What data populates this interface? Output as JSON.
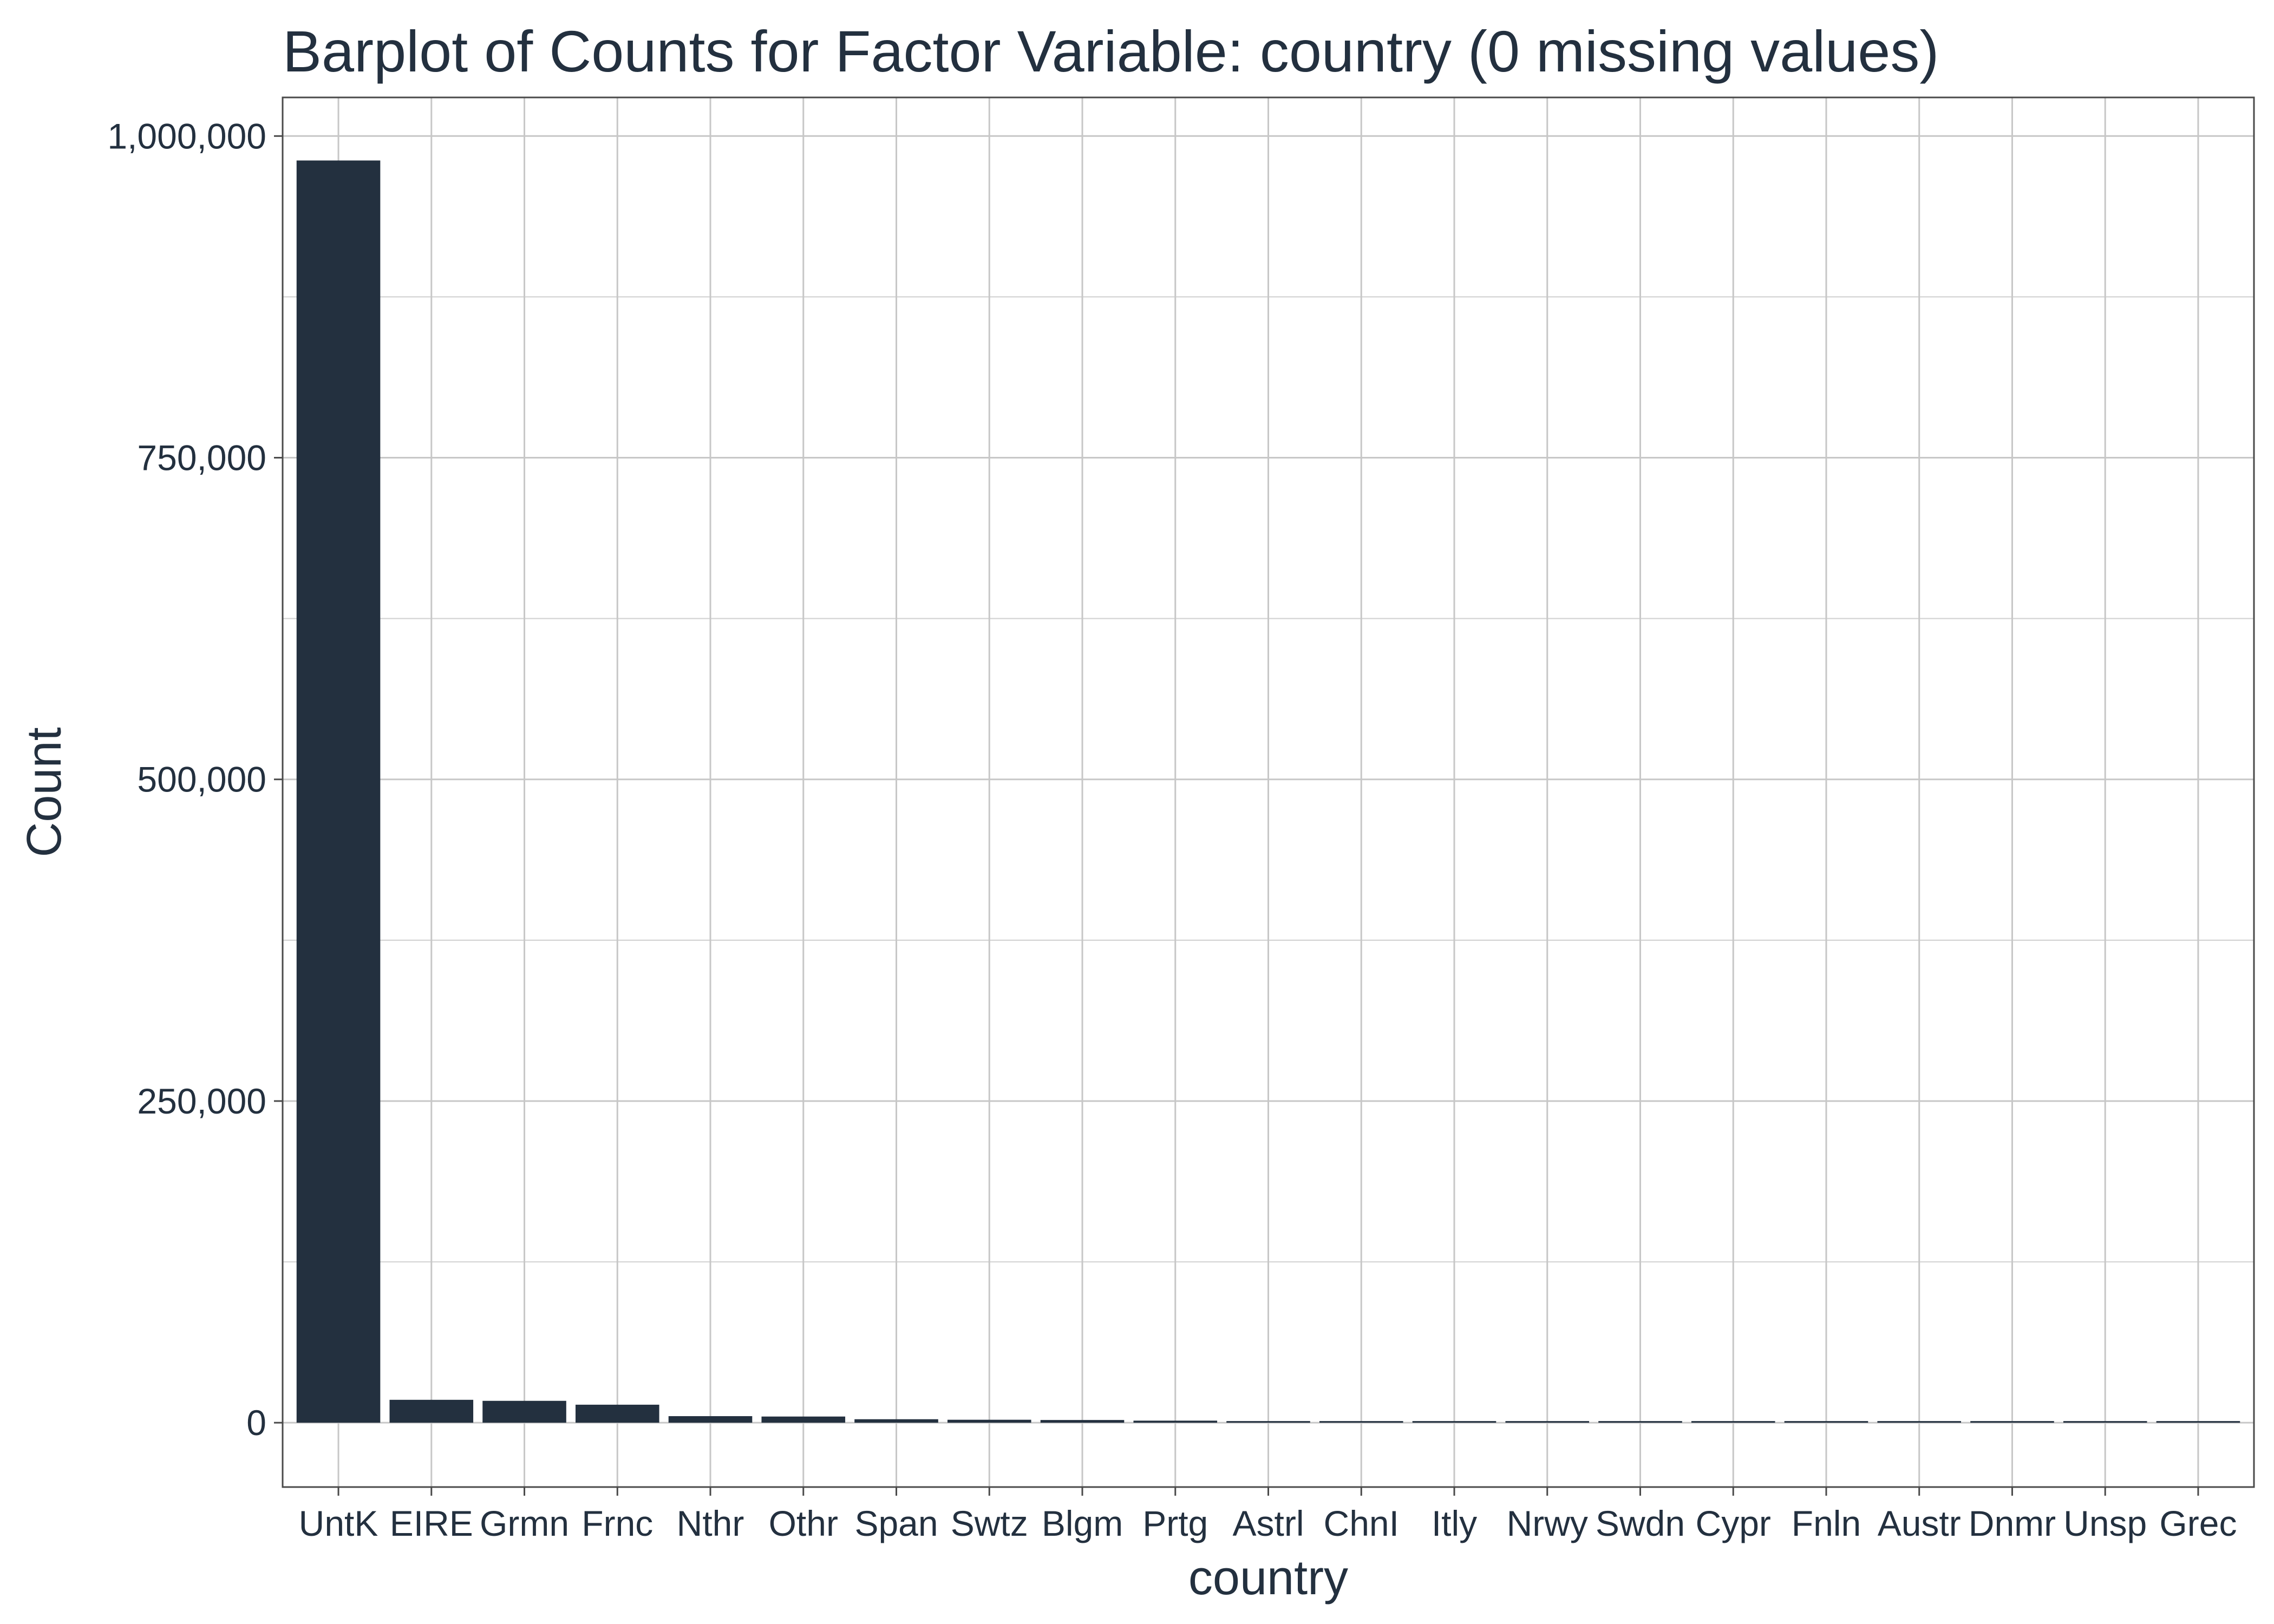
{
  "chart_data": {
    "type": "bar",
    "title": "Barplot of Counts for Factor Variable: country (0 missing values)",
    "xlabel": "country",
    "ylabel": "Count",
    "categories": [
      "UntK",
      "EIRE",
      "Grmn",
      "Frnc",
      "Nthr",
      "Othr",
      "Span",
      "Swtz",
      "Blgm",
      "Prtg",
      "Astrl",
      "ChnI",
      "Itly",
      "Nrwy",
      "Swdn",
      "Cypr",
      "Fnln",
      "Austr",
      "Dnmr",
      "Unsp",
      "Grec"
    ],
    "values": [
      981000,
      17800,
      17000,
      14000,
      5100,
      4800,
      2700,
      2300,
      2100,
      1600,
      1250,
      1100,
      800,
      750,
      900,
      650,
      550,
      550,
      450,
      350,
      300
    ],
    "ylim": [
      -50000,
      1030000
    ],
    "yticks": [
      0,
      250000,
      500000,
      750000,
      1000000
    ],
    "ytick_labels": [
      "0",
      "250,000",
      "500,000",
      "750,000",
      "1,000,000"
    ],
    "grid": true,
    "bar_color": "#23303f",
    "text_color": "#23303f",
    "grid_color": "#c7c7c7"
  }
}
